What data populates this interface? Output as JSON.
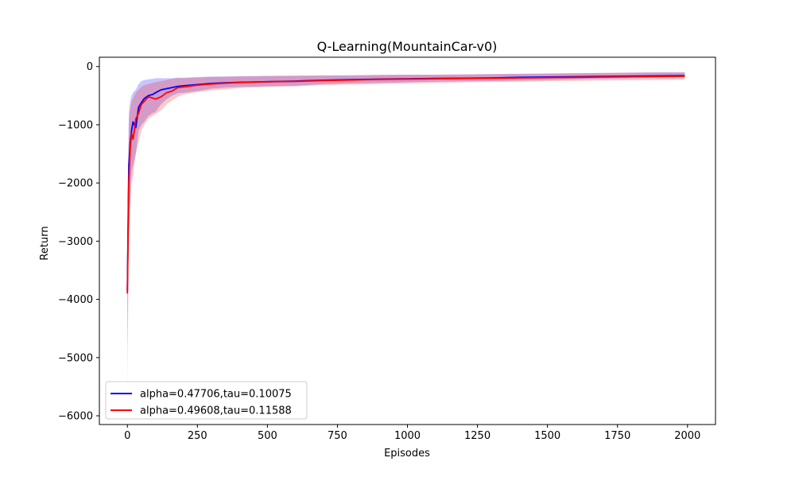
{
  "chart_data": {
    "type": "line",
    "title": "Q-Learning(MountainCar-v0)",
    "xlabel": "Episodes",
    "ylabel": "Return",
    "xlim": [
      -100,
      2100
    ],
    "ylim": [
      -6150,
      160
    ],
    "xticks": [
      0,
      250,
      500,
      750,
      1000,
      1250,
      1500,
      1750,
      2000
    ],
    "xtick_labels": [
      "0",
      "250",
      "500",
      "750",
      "1000",
      "1250",
      "1500",
      "1750",
      "2000"
    ],
    "yticks": [
      0,
      -1000,
      -2000,
      -3000,
      -4000,
      -5000,
      -6000
    ],
    "ytick_labels": [
      "0",
      "−1000",
      "−2000",
      "−3000",
      "−4000",
      "−5000",
      "−6000"
    ],
    "grid": false,
    "legend_position": "lower-left",
    "series": [
      {
        "name": "alpha=0.47706,tau=0.10075",
        "color": "#0000ff",
        "x": [
          0,
          5,
          10,
          15,
          20,
          25,
          30,
          40,
          50,
          60,
          75,
          90,
          100,
          120,
          140,
          160,
          180,
          200,
          250,
          300,
          350,
          400,
          500,
          600,
          700,
          800,
          900,
          1000,
          1100,
          1200,
          1300,
          1400,
          1500,
          1600,
          1700,
          1800,
          1900,
          1990
        ],
        "y": [
          -3850,
          -1700,
          -1300,
          -1100,
          -950,
          -1000,
          -1050,
          -700,
          -620,
          -550,
          -500,
          -480,
          -450,
          -400,
          -380,
          -360,
          -340,
          -330,
          -310,
          -290,
          -280,
          -270,
          -260,
          -250,
          -235,
          -225,
          -215,
          -210,
          -205,
          -200,
          -195,
          -185,
          -180,
          -175,
          -170,
          -165,
          -160,
          -155
        ],
        "lower": [
          -4850,
          -2800,
          -2300,
          -1800,
          -1700,
          -1600,
          -1500,
          -1100,
          -1000,
          -950,
          -850,
          -800,
          -780,
          -650,
          -560,
          -500,
          -460,
          -450,
          -420,
          -380,
          -360,
          -350,
          -340,
          -330,
          -300,
          -290,
          -280,
          -270,
          -260,
          -255,
          -250,
          -240,
          -230,
          -220,
          -210,
          -200,
          -190,
          -185
        ],
        "upper": [
          -2900,
          -800,
          -600,
          -500,
          -450,
          -420,
          -400,
          -300,
          -250,
          -230,
          -220,
          -210,
          -200,
          -200,
          -200,
          -200,
          -190,
          -190,
          -180,
          -170,
          -170,
          -165,
          -160,
          -155,
          -150,
          -150,
          -145,
          -140,
          -140,
          -135,
          -130,
          -125,
          -120,
          -115,
          -110,
          -105,
          -100,
          -100
        ]
      },
      {
        "name": "alpha=0.49608,tau=0.11588",
        "color": "#ff0000",
        "x": [
          0,
          5,
          10,
          15,
          20,
          25,
          30,
          40,
          50,
          60,
          75,
          90,
          100,
          120,
          140,
          160,
          180,
          200,
          250,
          300,
          350,
          400,
          500,
          600,
          700,
          800,
          900,
          1000,
          1100,
          1200,
          1300,
          1400,
          1500,
          1600,
          1700,
          1800,
          1900,
          1990
        ],
        "y": [
          -3900,
          -2000,
          -1400,
          -1150,
          -1250,
          -1100,
          -900,
          -800,
          -650,
          -600,
          -520,
          -540,
          -560,
          -520,
          -450,
          -420,
          -360,
          -350,
          -320,
          -300,
          -285,
          -275,
          -260,
          -255,
          -240,
          -230,
          -220,
          -215,
          -210,
          -205,
          -200,
          -195,
          -190,
          -185,
          -180,
          -175,
          -170,
          -165
        ],
        "lower": [
          -5500,
          -3000,
          -2400,
          -2000,
          -1900,
          -1700,
          -1500,
          -1300,
          -1100,
          -1000,
          -900,
          -850,
          -820,
          -750,
          -650,
          -580,
          -520,
          -480,
          -440,
          -410,
          -390,
          -370,
          -350,
          -340,
          -320,
          -310,
          -300,
          -290,
          -280,
          -270,
          -265,
          -260,
          -250,
          -245,
          -240,
          -235,
          -230,
          -225
        ],
        "upper": [
          -2900,
          -1000,
          -700,
          -600,
          -550,
          -500,
          -450,
          -400,
          -350,
          -320,
          -300,
          -280,
          -270,
          -250,
          -230,
          -210,
          -200,
          -200,
          -190,
          -180,
          -175,
          -170,
          -165,
          -160,
          -155,
          -150,
          -145,
          -140,
          -140,
          -135,
          -130,
          -125,
          -120,
          -115,
          -110,
          -105,
          -100,
          -100
        ]
      }
    ]
  }
}
